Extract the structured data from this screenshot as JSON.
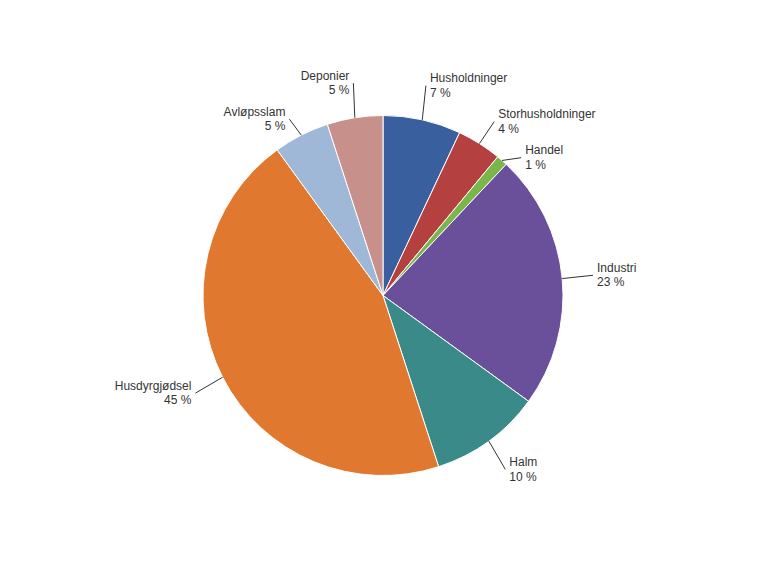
{
  "chart_data": {
    "type": "pie",
    "categories": [
      "Husholdninger",
      "Storhusholdninger",
      "Handel",
      "Industri",
      "Halm",
      "Husdyrgjødsel",
      "Avløpsslam",
      "Deponier"
    ],
    "values": [
      7,
      4,
      1,
      23,
      10,
      45,
      5,
      5
    ],
    "value_labels": [
      "7 %",
      "4 %",
      "1 %",
      "23 %",
      "10 %",
      "45 %",
      "5 %",
      "5 %"
    ],
    "colors": [
      "#3A5F9F",
      "#B54040",
      "#7AB648",
      "#6A4F9B",
      "#3A8A8A",
      "#E07830",
      "#A0B8D8",
      "#C8908A"
    ],
    "data_labels": true
  }
}
